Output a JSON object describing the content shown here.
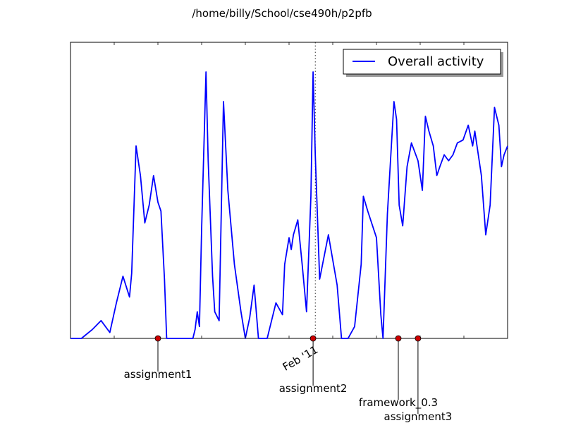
{
  "chart_data": {
    "type": "line",
    "title": "/home/billy/School/cse490h/p2pfb",
    "xlabel": "",
    "ylabel": "",
    "x_tick_labels": [
      "Feb '11"
    ],
    "grid": false,
    "legend_position": "top-right",
    "ylim": [
      0,
      100
    ],
    "series": [
      {
        "name": "Overall activity",
        "color": "#0000ff",
        "x": [
          0,
          2.5,
          5,
          7,
          9,
          10.5,
          12,
          13.5,
          14,
          15,
          16,
          17,
          18,
          19,
          20,
          20.7,
          21.5,
          22,
          22.5,
          23,
          24,
          24.3,
          25,
          26,
          27,
          28,
          28.5,
          29,
          29.5,
          30,
          31,
          31.5,
          32.5,
          33,
          34,
          35,
          36,
          37.5,
          39,
          40,
          41,
          42,
          43,
          45,
          46,
          47,
          48.5,
          49,
          50,
          50.5,
          51,
          52,
          53,
          54,
          55,
          55.5,
          56,
          57,
          59,
          61,
          62,
          63.5,
          65,
          66.5,
          67,
          68,
          70,
          71,
          71.5,
          72.5,
          74,
          74.6,
          75.2,
          76,
          77,
          78,
          79.5,
          80.5,
          81.2,
          82,
          83,
          83.8,
          84.5,
          85.5,
          86.5,
          87.5,
          88.5,
          89.8,
          91,
          92,
          92.5,
          94,
          95,
          96,
          97,
          98,
          98.6,
          99.2,
          100
        ],
        "y": [
          0,
          0,
          3,
          6,
          2,
          12,
          21,
          14,
          22,
          65,
          55,
          39,
          45,
          55,
          46,
          43,
          20,
          0,
          0,
          0,
          0,
          0,
          0,
          0,
          0,
          0,
          3,
          9,
          4,
          37,
          90,
          60,
          21,
          9,
          6,
          80,
          50,
          25,
          9,
          0,
          7,
          18,
          0,
          0,
          6,
          12,
          8,
          25,
          34,
          30,
          35,
          40,
          25,
          9,
          48,
          90,
          62,
          20,
          35,
          18,
          0,
          0,
          4,
          25,
          48,
          43,
          34,
          8,
          0,
          42,
          80,
          74,
          45,
          38,
          58,
          66,
          60,
          50,
          75,
          70,
          65,
          55,
          58,
          62,
          60,
          62,
          66,
          67,
          72,
          65,
          70,
          55,
          35,
          45,
          78,
          72,
          58,
          62,
          65
        ]
      }
    ],
    "events": [
      {
        "label": "assignment1",
        "x": 20
      },
      {
        "label": "assignment2",
        "x": 55.5
      },
      {
        "label": "framework_0.3",
        "x": 75
      },
      {
        "label": "assignment3",
        "x": 79.5
      }
    ],
    "event_marker_color": "#cc0000",
    "reference_line_x": 56
  }
}
